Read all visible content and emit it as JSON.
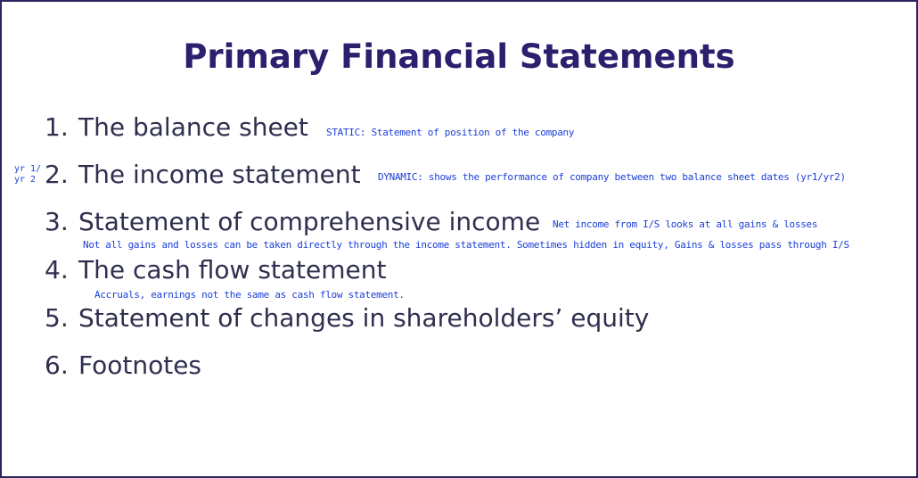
{
  "slide": {
    "title": "Primary Financial Statements",
    "items": [
      {
        "number": "1.",
        "label": "The balance sheet"
      },
      {
        "number": "2.",
        "label": "The income statement"
      },
      {
        "number": "3.",
        "label": "Statement of comprehensive income"
      },
      {
        "number": "4.",
        "label": "The cash flow statement"
      },
      {
        "number": "5.",
        "label": "Statement of changes in shareholders’ equity"
      },
      {
        "number": "6.",
        "label": "Footnotes"
      }
    ],
    "annotations": {
      "balance_sheet": "STATIC: Statement of position of the company",
      "income_statement": "DYNAMIC: shows the performance of company between two balance sheet dates (yr1/yr2)",
      "margin_line1": "yr 1/",
      "margin_line2": "yr 2",
      "comprehensive_income_1": "Net income from I/S looks at all gains & losses",
      "comprehensive_income_2": "Not all gains and losses can be taken directly through the income statement.  Sometimes hidden in equity, Gains & losses pass through I/S",
      "cash_flow": "Accruals, earnings not the same as cash flow statement."
    },
    "colors": {
      "title": "#2b1f6e",
      "body_text": "#2f2f4f",
      "annotation_ink": "#1a3fd8",
      "border": "#2b2560"
    }
  }
}
